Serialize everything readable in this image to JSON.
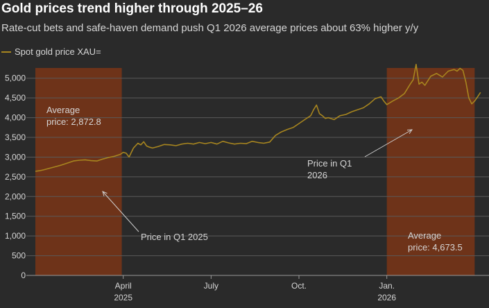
{
  "title": "Gold prices trend higher through 2025–26",
  "subtitle": "Rate-cut bets and safe-haven demand push Q1 2026 average prices about 63% higher y/y",
  "colors": {
    "background": "#2a2a2a",
    "line": "#a8861f",
    "shade": "#6e3319",
    "grid": "#5a5a5a",
    "text": "#d6d6d6",
    "arrow": "#cfcfcf"
  },
  "chart_data": {
    "type": "line",
    "title": "Gold prices trend higher through 2025–26",
    "xlabel": "",
    "ylabel": "",
    "ylim": [
      0,
      5400
    ],
    "xlim": [
      0,
      15.3
    ],
    "x_unit": "months since Jan 1, 2025",
    "y_ticks": [
      0,
      500,
      1000,
      1500,
      2000,
      2500,
      3000,
      3500,
      4000,
      4500,
      5000
    ],
    "y_tick_labels": [
      "0",
      "500",
      "1,000",
      "1,500",
      "2,000",
      "2,500",
      "3,000",
      "3,500",
      "4,000",
      "4,500",
      "5,000"
    ],
    "x_ticks": [
      {
        "x": 3,
        "label": "April",
        "sublabel": "2025"
      },
      {
        "x": 6,
        "label": "July",
        "sublabel": ""
      },
      {
        "x": 9,
        "label": "Oct.",
        "sublabel": ""
      },
      {
        "x": 12,
        "label": "Jan.",
        "sublabel": "2026"
      }
    ],
    "series": [
      {
        "name": "Spot gold price XAU=",
        "x": [
          0,
          0.15,
          0.3,
          0.5,
          0.7,
          0.9,
          1.1,
          1.3,
          1.5,
          1.7,
          1.9,
          2.1,
          2.3,
          2.5,
          2.7,
          2.9,
          3.0,
          3.1,
          3.2,
          3.35,
          3.5,
          3.6,
          3.7,
          3.8,
          3.9,
          4.0,
          4.2,
          4.4,
          4.6,
          4.8,
          5.0,
          5.2,
          5.4,
          5.6,
          5.8,
          6.0,
          6.2,
          6.4,
          6.6,
          6.8,
          7.0,
          7.2,
          7.4,
          7.6,
          7.8,
          8.0,
          8.2,
          8.4,
          8.6,
          8.8,
          9.0,
          9.2,
          9.4,
          9.5,
          9.6,
          9.7,
          9.8,
          9.9,
          10.0,
          10.2,
          10.4,
          10.6,
          10.8,
          11.0,
          11.2,
          11.4,
          11.6,
          11.8,
          11.9,
          12.0,
          12.2,
          12.4,
          12.6,
          12.8,
          12.9,
          13.0,
          13.1,
          13.2,
          13.3,
          13.5,
          13.7,
          13.9,
          14.1,
          14.3,
          14.4,
          14.5,
          14.6,
          14.7,
          14.8,
          14.9,
          15.0,
          15.1,
          15.2
        ],
        "values": [
          2640,
          2655,
          2680,
          2720,
          2760,
          2800,
          2850,
          2900,
          2920,
          2930,
          2910,
          2900,
          2950,
          2990,
          3020,
          3070,
          3120,
          3100,
          3000,
          3230,
          3350,
          3310,
          3390,
          3280,
          3250,
          3230,
          3270,
          3320,
          3310,
          3290,
          3330,
          3350,
          3330,
          3370,
          3340,
          3370,
          3330,
          3400,
          3360,
          3330,
          3350,
          3340,
          3400,
          3370,
          3350,
          3380,
          3550,
          3640,
          3700,
          3750,
          3850,
          3950,
          4050,
          4200,
          4320,
          4100,
          4050,
          3980,
          4000,
          3950,
          4050,
          4080,
          4150,
          4200,
          4250,
          4350,
          4480,
          4530,
          4420,
          4330,
          4420,
          4500,
          4610,
          4850,
          4960,
          5350,
          4850,
          4900,
          4820,
          5050,
          5120,
          5030,
          5180,
          5220,
          5180,
          5250,
          5200,
          4900,
          4500,
          4350,
          4420,
          4530,
          4640
        ]
      }
    ],
    "shaded_regions": [
      {
        "x_start": 0,
        "x_end": 2.95,
        "label": "Price in Q1 2025",
        "average_label": "Average\nprice: 2,872.8",
        "average": 2872.8
      },
      {
        "x_start": 12.0,
        "x_end": 15.0,
        "label": "Price in Q1 2026",
        "average_label": "Average\nprice: 4,673.5",
        "average": 4673.5
      }
    ],
    "annotations": [
      {
        "text": "Price in Q1 2025",
        "lines": [
          "Price in Q1 2025"
        ]
      },
      {
        "text": "Price in Q1 2026",
        "lines": [
          "Price in Q1",
          "2026"
        ]
      },
      {
        "text": "Average price: 2,872.8",
        "lines": [
          "Average",
          "price: 2,872.8"
        ]
      },
      {
        "text": "Average price: 4,673.5",
        "lines": [
          "Average",
          "price: 4,673.5"
        ]
      }
    ],
    "legend": {
      "placement": "top-left",
      "entries": [
        "Spot gold price XAU="
      ]
    }
  }
}
